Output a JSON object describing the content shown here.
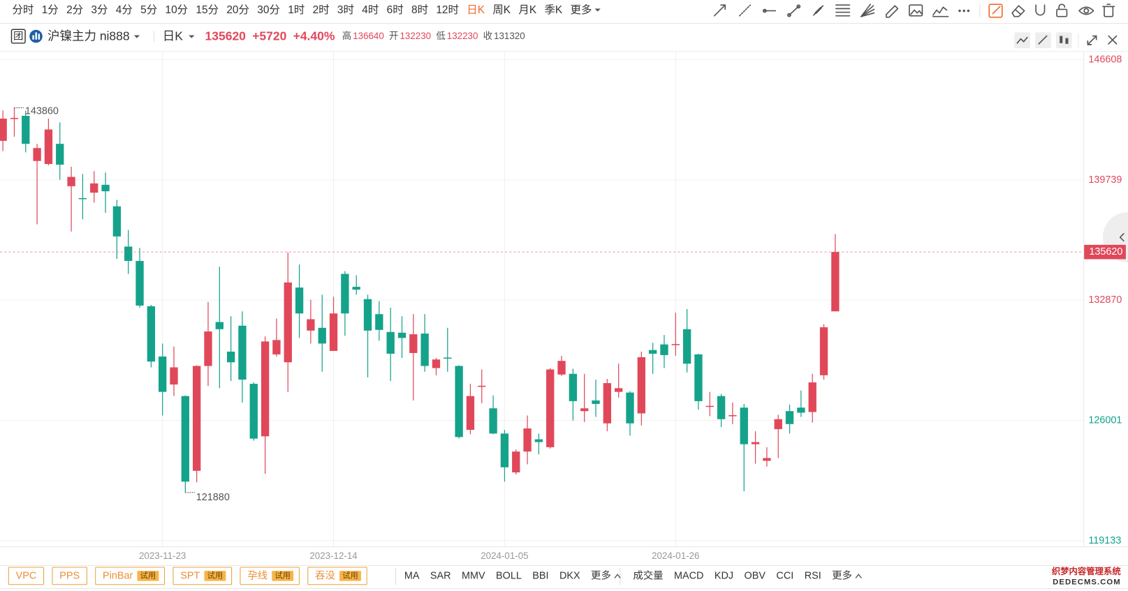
{
  "toolbar": {
    "periods": [
      "分时",
      "1分",
      "2分",
      "3分",
      "4分",
      "5分",
      "10分",
      "15分",
      "20分",
      "30分",
      "1时",
      "2时",
      "3时",
      "4时",
      "6时",
      "8时",
      "12时",
      "日K",
      "周K",
      "月K",
      "季K",
      "更多"
    ],
    "active_period": 17
  },
  "header": {
    "badge": "团",
    "symbol": "沪镍主力 ni888",
    "period": "日K",
    "change": "+5720",
    "change_pct": "+4.40%",
    "labels": {
      "high": "高",
      "open": "开",
      "low": "低",
      "prev_close": "收"
    }
  },
  "chart_data": {
    "type": "candlestick",
    "up_color": "#e0485a",
    "down_color": "#14a38a",
    "categories": [
      null,
      null,
      null,
      null,
      null,
      null,
      null,
      null,
      null,
      null,
      null,
      null,
      null,
      null,
      "2023-11-23",
      null,
      null,
      null,
      null,
      null,
      null,
      null,
      null,
      null,
      null,
      null,
      null,
      null,
      null,
      "2023-12-14",
      null,
      null,
      null,
      null,
      null,
      null,
      null,
      null,
      null,
      null,
      null,
      null,
      null,
      null,
      "2024-01-05",
      null,
      null,
      null,
      null,
      null,
      null,
      null,
      null,
      null,
      null,
      null,
      null,
      null,
      null,
      "2024-01-26",
      null,
      null,
      null,
      null,
      null,
      null,
      null,
      null,
      null,
      null,
      null,
      null,
      null,
      null
    ],
    "open": [
      141970,
      143240,
      143400,
      140820,
      140650,
      141800,
      139380,
      138700,
      139010,
      139460,
      138230,
      135930,
      135110,
      132520,
      129650,
      128050,
      127390,
      123120,
      129110,
      131620,
      129930,
      131410,
      128090,
      125090,
      129770,
      129320,
      133590,
      131130,
      131290,
      129970,
      134370,
      133630,
      132930,
      132070,
      131050,
      131010,
      129850,
      130960,
      128990,
      129590,
      129110,
      125460,
      127940,
      126690,
      125250,
      123030,
      124220,
      124920,
      124470,
      128620,
      128660,
      126530,
      127140,
      125830,
      127630,
      127590,
      126400,
      130020,
      130340,
      130320,
      131210,
      129770,
      126790,
      127390,
      126260,
      126730,
      124640,
      123690,
      125500,
      126530,
      126730,
      126480,
      128580,
      132230
    ],
    "high": [
      143700,
      143860,
      143700,
      141800,
      143240,
      143030,
      140490,
      140080,
      140240,
      140160,
      138600,
      136880,
      135850,
      132600,
      130390,
      130220,
      127430,
      129150,
      132770,
      134780,
      131950,
      132230,
      128170,
      130800,
      131820,
      135600,
      134900,
      132890,
      133180,
      133060,
      134530,
      134290,
      133180,
      132810,
      132440,
      131950,
      132070,
      132070,
      129570,
      131290,
      129150,
      128090,
      128910,
      127430,
      125460,
      124340,
      126280,
      125250,
      128990,
      129690,
      128950,
      128660,
      128330,
      128370,
      129240,
      127670,
      129930,
      130430,
      130880,
      132150,
      132360,
      129810,
      127630,
      127510,
      127020,
      126940,
      125380,
      124470,
      126320,
      126900,
      127710,
      128660,
      131500,
      136640
    ],
    "low": [
      141390,
      142210,
      141310,
      137200,
      140570,
      139750,
      136790,
      137490,
      138440,
      137860,
      135230,
      134370,
      132440,
      129030,
      126280,
      127390,
      121880,
      122460,
      127960,
      127840,
      128250,
      127020,
      124840,
      122950,
      129650,
      127630,
      130710,
      130390,
      128780,
      129970,
      130840,
      133180,
      128460,
      130550,
      128250,
      129570,
      127140,
      128780,
      128580,
      128780,
      124960,
      125210,
      126980,
      125210,
      122500,
      122910,
      123490,
      124060,
      124390,
      128540,
      125990,
      125910,
      126200,
      125380,
      127300,
      125130,
      125710,
      128660,
      128990,
      129690,
      128740,
      126610,
      126240,
      125620,
      125790,
      121950,
      123530,
      123360,
      123850,
      125250,
      126200,
      125870,
      128330,
      132230
    ],
    "close": [
      143240,
      143280,
      141800,
      141560,
      142620,
      140610,
      139910,
      138660,
      139540,
      139090,
      136510,
      135110,
      132560,
      129360,
      127630,
      129030,
      122500,
      129110,
      131080,
      131210,
      129320,
      128330,
      124960,
      130510,
      130590,
      133880,
      132110,
      131780,
      130390,
      132110,
      132110,
      133470,
      131130,
      131170,
      129810,
      130710,
      130920,
      129110,
      129480,
      129540,
      125050,
      127390,
      127980,
      125250,
      123320,
      124220,
      125540,
      124760,
      128910,
      129400,
      127100,
      126690,
      126940,
      128130,
      127840,
      125830,
      129610,
      129810,
      129730,
      130360,
      129240,
      127100,
      126830,
      126070,
      126300,
      124640,
      124760,
      123850,
      126070,
      125790,
      126440,
      128170,
      131320,
      135620
    ],
    "ylim": [
      118800,
      147060
    ],
    "yticks": [
      119133,
      126001,
      132870,
      139739,
      146608
    ],
    "grid": true
  },
  "indicators": {
    "patterns": [
      {
        "name": "VPC"
      },
      {
        "name": "PPS"
      },
      {
        "name": "PinBar",
        "tag": "试用"
      },
      {
        "name": "SPT",
        "tag": "试用"
      },
      {
        "name": "孕线",
        "tag": "试用"
      },
      {
        "name": "吞没",
        "tag": "试用"
      }
    ],
    "main": [
      "MA",
      "SAR",
      "MMV",
      "BOLL",
      "BBI",
      "DKX",
      "更多"
    ],
    "sub": [
      "成交量",
      "MACD",
      "KDJ",
      "OBV",
      "CCI",
      "RSI",
      "更多"
    ]
  },
  "watermark": {
    "line1": "织梦内容管理系统",
    "line2": "DEDECMS.COM"
  }
}
